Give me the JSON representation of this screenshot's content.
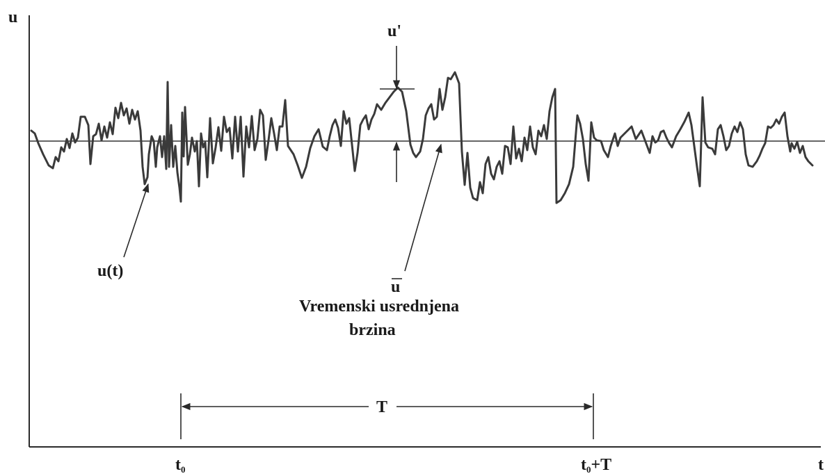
{
  "axes": {
    "y_label": "u",
    "x_label": "t"
  },
  "labels": {
    "fluctuation": "u'",
    "signal": "u(t)",
    "mean_symbol": "u",
    "mean_line1": "Vremenski usrednjena",
    "mean_line2": "brzina",
    "period": "T",
    "t_start": "t",
    "t_start_sub": "0",
    "t_end": "t",
    "t_end_sub": "0",
    "t_end_suffix": "+T"
  },
  "colors": {
    "ink": "#1a1a1a",
    "signal": "#3a3a3a"
  }
}
